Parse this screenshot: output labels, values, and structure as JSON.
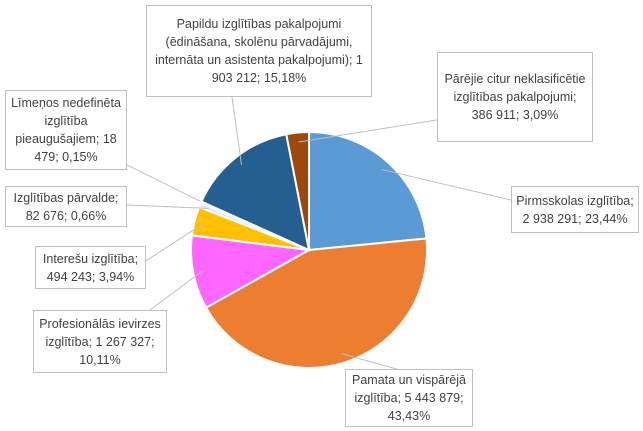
{
  "chart_data": {
    "type": "pie",
    "title": "",
    "start": "top, clockwise",
    "slices": [
      {
        "name": "Pirmsskolas izglītība",
        "value": 2938291,
        "percent": 23.44,
        "label": "Pirmsskolas izglītība; 2 938 291; 23,44%",
        "color": "#5B9BD5"
      },
      {
        "name": "Pamata un vispārējā izglītība",
        "value": 5443879,
        "percent": 43.43,
        "label": "Pamata un vispārējā izglītība; 5 443 879; 43,43%",
        "color": "#ED7D31"
      },
      {
        "name": "Profesionālās ievirzes izglītība",
        "value": 1267327,
        "percent": 10.11,
        "label": "Profesionālās ievirzes izglītība; 1 267 327; 10,11%",
        "color": "#FF66FF"
      },
      {
        "name": "Interešu izglītība",
        "value": 494243,
        "percent": 3.94,
        "label": "Interešu izglītība; 494 243; 3,94%",
        "color": "#FFC000"
      },
      {
        "name": "Izglītības pārvalde",
        "value": 82676,
        "percent": 0.66,
        "label": "Izglītības pārvalde; 82 676; 0,66%",
        "color": "#DDEBF7"
      },
      {
        "name": "Līmeņos nedefinēta izglītība pieaugušajiem",
        "value": 18479,
        "percent": 0.15,
        "label": "Līmeņos nedefinēta izglītība pieaugušajiem; 18 479; 0,15%",
        "color": "#4472C4"
      },
      {
        "name": "Papildu izglītības pakalpojumi (ēdināšana, skolēnu pārvadājumi, internāta un asistenta pakalpojumi)",
        "value": 1903212,
        "percent": 15.18,
        "label": "Papildu izglītības pakalpojumi (ēdināšana, skolēnu pārvadājumi, internāta un asistenta pakalpojumi); 1 903 212; 15,18%",
        "color": "#255E91"
      },
      {
        "name": "Pārējie citur neklasificētie izglītības pakalpojumi",
        "value": 386911,
        "percent": 3.09,
        "label": "Pārējie citur neklasificētie izglītības pakalpojumi; 386 911; 3,09%",
        "color": "#9E480E"
      }
    ]
  }
}
